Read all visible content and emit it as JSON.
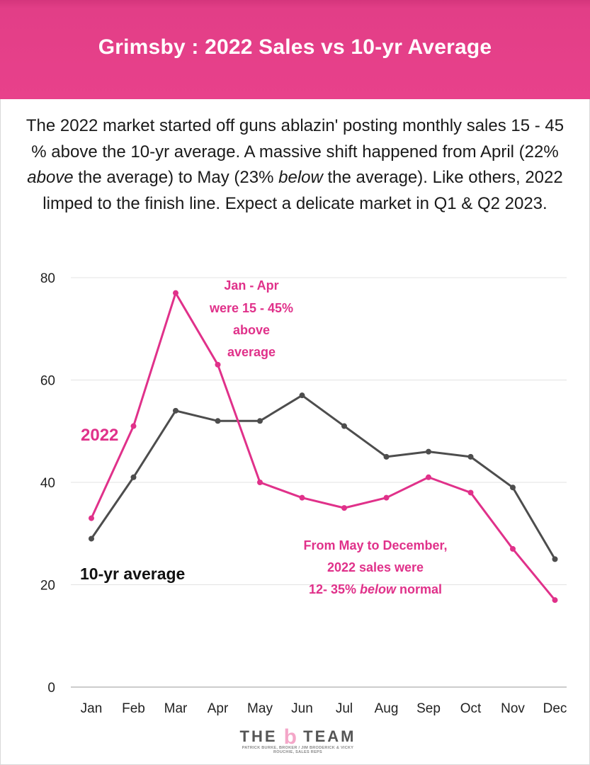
{
  "header": {
    "title": "Grimsby : 2022 Sales vs 10-yr Average"
  },
  "description": {
    "part1": "The 2022 market started off guns ablazin' posting monthly sales 15 - 45 % above the 10-yr average. A massive shift happened from April (22% ",
    "em1": "above",
    "part2": " the average) to May (23% ",
    "em2": "below",
    "part3": " the average). Like others, 2022 limped to the finish line. Expect a delicate market in Q1 & Q2 2023."
  },
  "chart_data": {
    "type": "line",
    "categories": [
      "Jan",
      "Feb",
      "Mar",
      "Apr",
      "May",
      "Jun",
      "Jul",
      "Aug",
      "Sep",
      "Oct",
      "Nov",
      "Dec"
    ],
    "series": [
      {
        "name": "2022",
        "values": [
          33,
          51,
          77,
          63,
          40,
          37,
          35,
          37,
          41,
          38,
          27,
          17
        ],
        "color": "#e0318a"
      },
      {
        "name": "10-yr average",
        "values": [
          29,
          41,
          54,
          52,
          52,
          57,
          51,
          45,
          46,
          45,
          39,
          25
        ],
        "color": "#4d4d4d"
      }
    ],
    "ylim": [
      0,
      80
    ],
    "yticks": [
      "0",
      "20",
      "40",
      "60",
      "80"
    ],
    "grid": true,
    "annotations": {
      "top": [
        "Jan - Apr",
        "were 15 - 45%",
        "above",
        "average"
      ],
      "bottom": {
        "line1": "From May to December,",
        "line2": "2022 sales were",
        "line3_pre": "12- 35% ",
        "line3_em": "below",
        "line3_post": " normal"
      }
    }
  },
  "logo": {
    "the": "THE",
    "b": "b",
    "team": "TEAM",
    "subtitle": "PATRICK BURKE, BROKER / JIM BRODERICK & VICKY ROUCHIE, SALES REPS"
  }
}
